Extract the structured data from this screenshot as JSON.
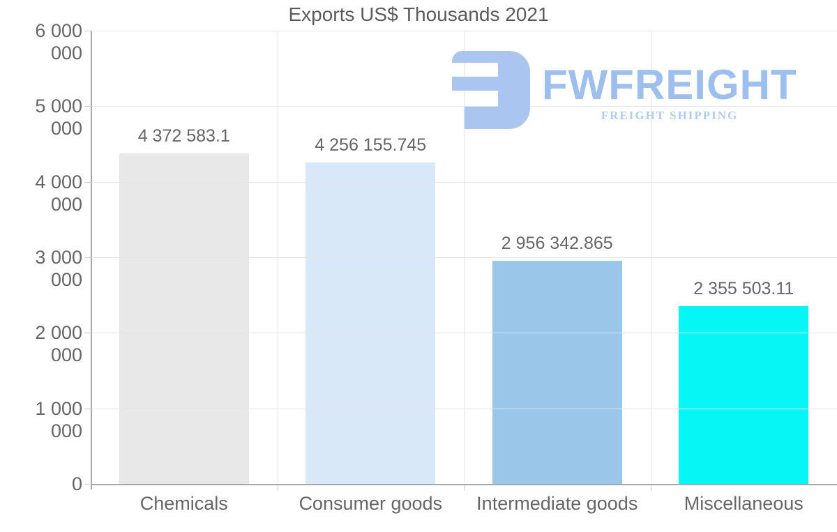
{
  "page": {
    "background": "#ffffff"
  },
  "logo": {
    "brand": "FWFREIGHT",
    "tagline": "FREIGHT SHIPPING",
    "mark_color": "#a9c5f0",
    "brand_color": "#9dbfee",
    "tagline_color": "#b2cbf2"
  },
  "chart_data": {
    "type": "bar",
    "title": "Exports US$ Thousands 2021",
    "categories": [
      "Chemicals",
      "Consumer goods",
      "Intermediate goods",
      "Miscellaneous"
    ],
    "values": [
      4372583.1,
      4256155.745,
      2956342.865,
      2355503.11
    ],
    "value_labels": [
      "4 372 583.1",
      "4 256 155.745",
      "2 956 342.865",
      "2 355 503.11"
    ],
    "bar_colors": [
      "#e8e8e8",
      "#d9e8f8",
      "#9ac6e9",
      "#06f6f6"
    ],
    "xlabel": "",
    "ylabel": "",
    "ylim": [
      0,
      6000000
    ],
    "ytick_step": 1000000,
    "ytick_labels": [
      "0",
      "1 000 000",
      "2 000 000",
      "3 000 000",
      "4 000 000",
      "5 000 000",
      "6 000 000"
    ],
    "grid": {
      "horizontal": true,
      "vertical_category_separators": true
    },
    "legend": "none",
    "label_color": "#666666",
    "title_color": "#5a5b5d"
  }
}
